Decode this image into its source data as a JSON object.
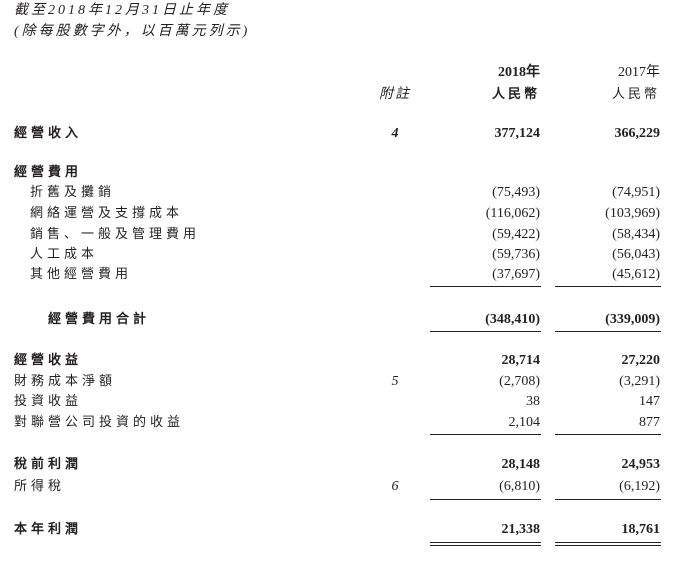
{
  "header": {
    "line1": "截至2018年12月31日止年度",
    "line2": "(除每股數字外，以百萬元列示)"
  },
  "columns": {
    "note": "附註",
    "y2018": "2018年",
    "y2017": "2017年",
    "currency": "人民幣"
  },
  "rows": [
    {
      "label": "經營收入",
      "note": "4",
      "v2018": "377,124",
      "v2017": "366,229",
      "bold": true
    },
    {
      "label": "經營費用",
      "note": "",
      "v2018": "",
      "v2017": "",
      "bold": true
    },
    {
      "label": "折舊及攤銷",
      "note": "",
      "v2018": "(75,493)",
      "v2017": "(74,951)"
    },
    {
      "label": "網絡運營及支撐成本",
      "note": "",
      "v2018": "(116,062)",
      "v2017": "(103,969)"
    },
    {
      "label": "銷售、一般及管理費用",
      "note": "",
      "v2018": "(59,422)",
      "v2017": "(58,434)"
    },
    {
      "label": "人工成本",
      "note": "",
      "v2018": "(59,736)",
      "v2017": "(56,043)"
    },
    {
      "label": "其他經營費用",
      "note": "",
      "v2018": "(37,697)",
      "v2017": "(45,612)"
    },
    {
      "label": "經營費用合計",
      "note": "",
      "v2018": "(348,410)",
      "v2017": "(339,009)",
      "bold": true
    },
    {
      "label": "經營收益",
      "note": "",
      "v2018": "28,714",
      "v2017": "27,220",
      "bold": true
    },
    {
      "label": "財務成本淨額",
      "note": "5",
      "v2018": "(2,708)",
      "v2017": "(3,291)"
    },
    {
      "label": "投資收益",
      "note": "",
      "v2018": "38",
      "v2017": "147"
    },
    {
      "label": "對聯營公司投資的收益",
      "note": "",
      "v2018": "2,104",
      "v2017": "877"
    },
    {
      "label": "稅前利潤",
      "note": "",
      "v2018": "28,148",
      "v2017": "24,953",
      "bold": true
    },
    {
      "label": "所得稅",
      "note": "6",
      "v2018": "(6,810)",
      "v2017": "(6,192)"
    },
    {
      "label": "本年利潤",
      "note": "",
      "v2018": "21,338",
      "v2017": "18,761",
      "bold": true
    }
  ]
}
